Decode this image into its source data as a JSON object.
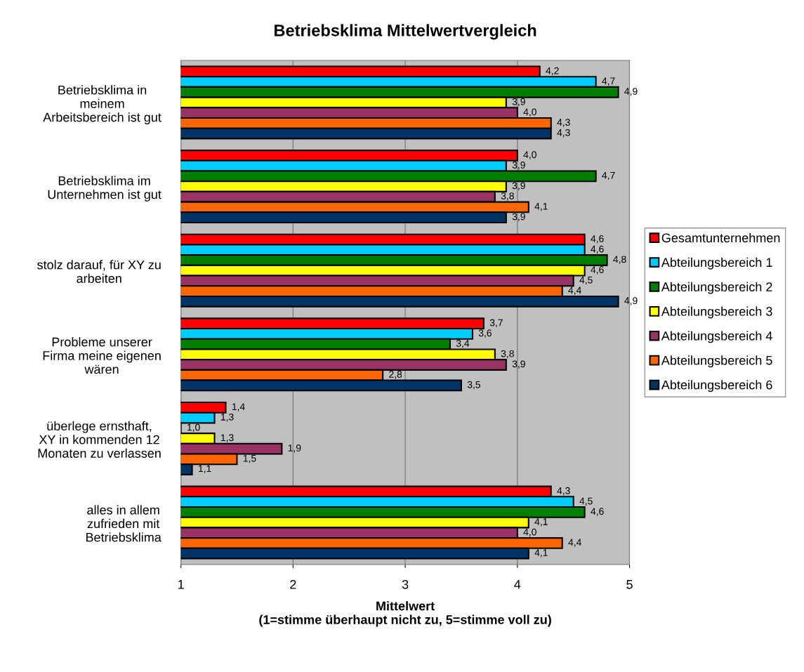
{
  "chart_data": {
    "type": "bar",
    "orientation": "horizontal",
    "title": "Betriebsklima Mittelwertvergleich",
    "xlabel": "Mittelwert\n(1=stimme überhaupt nicht zu, 5=stimme voll zu)",
    "categories": [
      "Betriebsklima in\nmeinem\nArbeitsbereich ist gut",
      "Betriebsklima im\nUnternehmen ist gut",
      "stolz darauf, für XY zu\narbeiten",
      "Probleme unserer\nFirma meine eigenen\nwären",
      "überlege ernsthaft,\nXY in kommenden 12\nMonaten zu verlassen",
      "alles in allem\nzufrieden mit\nBetriebsklima"
    ],
    "series": [
      {
        "name": "Gesamtunternehmen",
        "color": "#ff0000",
        "values": [
          4.2,
          4.0,
          4.6,
          3.7,
          1.4,
          4.3
        ],
        "value_labels": [
          "4,2",
          "4,0",
          "4,6",
          "3,7",
          "1,4",
          "4,3"
        ]
      },
      {
        "name": "Abteilungsbereich 1",
        "color": "#00ccff",
        "values": [
          4.7,
          3.9,
          4.6,
          3.6,
          1.3,
          4.5
        ],
        "value_labels": [
          "4,7",
          "3,9",
          "4,6",
          "3,6",
          "1,3",
          "4,5"
        ]
      },
      {
        "name": "Abteilungsbereich 2",
        "color": "#008000",
        "values": [
          4.9,
          4.7,
          4.8,
          3.4,
          1.0,
          4.6
        ],
        "value_labels": [
          "4,9",
          "4,7",
          "4,8",
          "3,4",
          "1,0",
          "4,6"
        ]
      },
      {
        "name": "Abteilungsbereich 3",
        "color": "#ffff00",
        "values": [
          3.9,
          3.9,
          4.6,
          3.8,
          1.3,
          4.1
        ],
        "value_labels": [
          "3,9",
          "3,9",
          "4,6",
          "3,8",
          "1,3",
          "4,1"
        ]
      },
      {
        "name": "Abteilungsbereich 4",
        "color": "#993366",
        "values": [
          4.0,
          3.8,
          4.5,
          3.9,
          1.9,
          4.0
        ],
        "value_labels": [
          "4,0",
          "3,8",
          "4,5",
          "3,9",
          "1,9",
          "4,0"
        ]
      },
      {
        "name": "Abteilungsbereich 5",
        "color": "#ff6600",
        "values": [
          4.3,
          4.1,
          4.4,
          2.8,
          1.5,
          4.4
        ],
        "value_labels": [
          "4,3",
          "4,1",
          "4,4",
          "2,8",
          "1,5",
          "4,4"
        ]
      },
      {
        "name": "Abteilungsbereich 6",
        "color": "#003366",
        "values": [
          4.3,
          3.9,
          4.9,
          3.5,
          1.1,
          4.1
        ],
        "value_labels": [
          "4,3",
          "3,9",
          "4,9",
          "3,5",
          "1,1",
          "4,1"
        ]
      }
    ],
    "xlim": [
      1,
      5
    ],
    "xticks": [
      1,
      2,
      3,
      4,
      5
    ],
    "grid": "x",
    "legend": "right"
  }
}
